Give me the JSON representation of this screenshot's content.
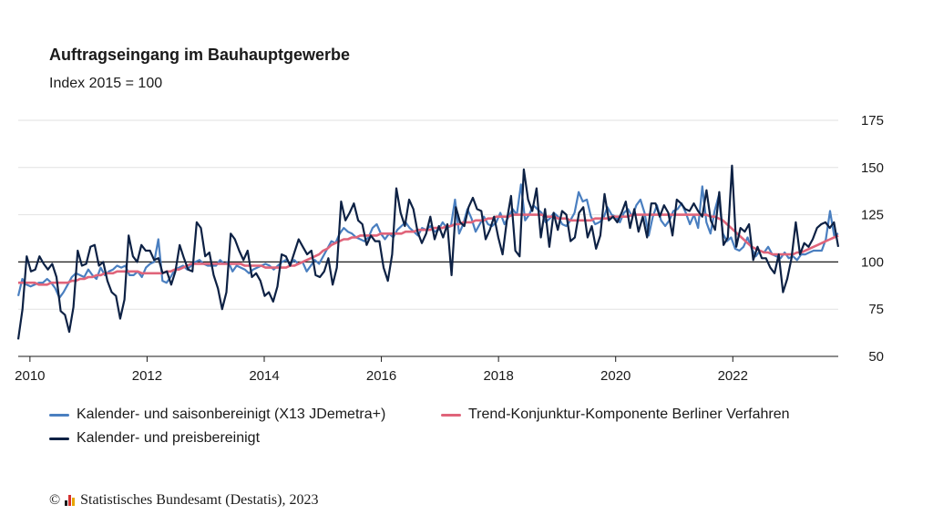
{
  "chart_data": {
    "type": "line",
    "title": "Auftragseingang im Bauhauptgewerbe",
    "subtitle": "Index 2015 = 100",
    "xlim": [
      2009.8,
      2023.8
    ],
    "ylim": [
      50,
      175
    ],
    "x_ticks": [
      "2010",
      "2012",
      "2014",
      "2016",
      "2018",
      "2020",
      "2022"
    ],
    "y_ticks": [
      "175",
      "150",
      "125",
      "100",
      "75",
      "50"
    ],
    "reference_line": 100,
    "series": [
      {
        "name": "Kalender- und saisonbereinigt (X13 JDemetra+)",
        "color": "#4a7fc0",
        "values": [
          82,
          91,
          88,
          87,
          88,
          89,
          89,
          91,
          89,
          86,
          81,
          84,
          88,
          92,
          94,
          93,
          92,
          96,
          93,
          91,
          97,
          93,
          95,
          96,
          98,
          97,
          98,
          93,
          93,
          95,
          92,
          97,
          99,
          100,
          112,
          90,
          89,
          92,
          96,
          97,
          98,
          96,
          98,
          100,
          101,
          99,
          98,
          98,
          98,
          101,
          99,
          100,
          95,
          98,
          97,
          96,
          94,
          96,
          97,
          98,
          99,
          98,
          96,
          98,
          100,
          101,
          99,
          101,
          99,
          100,
          95,
          98,
          101,
          99,
          103,
          107,
          111,
          110,
          115,
          118,
          116,
          115,
          113,
          112,
          111,
          113,
          118,
          120,
          115,
          112,
          115,
          113,
          117,
          119,
          121,
          118,
          116,
          114,
          118,
          117,
          119,
          116,
          117,
          121,
          118,
          119,
          133,
          115,
          120,
          128,
          123,
          116,
          120,
          124,
          120,
          119,
          121,
          126,
          120,
          124,
          128,
          125,
          141,
          122,
          125,
          130,
          128,
          126,
          121,
          123,
          126,
          124,
          120,
          119,
          122,
          126,
          137,
          132,
          133,
          124,
          120,
          121,
          123,
          129,
          125,
          124,
          121,
          126,
          128,
          124,
          130,
          133,
          126,
          114,
          124,
          130,
          122,
          119,
          122,
          127,
          128,
          131,
          126,
          120,
          125,
          118,
          140,
          121,
          115,
          127,
          135,
          115,
          111,
          113,
          107,
          106,
          108,
          113,
          107,
          103,
          106,
          105,
          108,
          104,
          103,
          102,
          105,
          102,
          103,
          101,
          104,
          104,
          105,
          106,
          106,
          106,
          112,
          127,
          114,
          115
        ]
      },
      {
        "name": "Trend-Konjunktur-Komponente Berliner Verfahren",
        "color": "#e0647a",
        "values": [
          89,
          89,
          89,
          89,
          89,
          88,
          88,
          88,
          89,
          89,
          89,
          89,
          89,
          90,
          90,
          91,
          91,
          92,
          92,
          93,
          93,
          94,
          94,
          94,
          95,
          95,
          95,
          95,
          95,
          95,
          94,
          94,
          94,
          94,
          94,
          94,
          95,
          95,
          96,
          96,
          97,
          98,
          99,
          99,
          99,
          99,
          99,
          99,
          99,
          99,
          99,
          99,
          99,
          99,
          99,
          98,
          98,
          98,
          98,
          98,
          97,
          97,
          97,
          97,
          97,
          97,
          98,
          98,
          99,
          100,
          101,
          102,
          103,
          104,
          106,
          107,
          109,
          110,
          111,
          112,
          112,
          113,
          113,
          114,
          114,
          114,
          114,
          114,
          115,
          115,
          115,
          115,
          115,
          115,
          116,
          116,
          116,
          117,
          117,
          117,
          117,
          118,
          118,
          118,
          119,
          119,
          120,
          120,
          121,
          121,
          121,
          122,
          122,
          122,
          123,
          123,
          124,
          124,
          124,
          124,
          125,
          125,
          125,
          125,
          125,
          125,
          125,
          125,
          124,
          124,
          124,
          123,
          123,
          123,
          122,
          122,
          122,
          122,
          122,
          122,
          123,
          123,
          123,
          123,
          124,
          124,
          124,
          124,
          124,
          125,
          125,
          125,
          125,
          125,
          125,
          125,
          125,
          125,
          125,
          125,
          125,
          125,
          125,
          125,
          125,
          125,
          125,
          125,
          124,
          124,
          123,
          122,
          120,
          118,
          116,
          114,
          112,
          110,
          108,
          107,
          106,
          105,
          105,
          104,
          104,
          104,
          104,
          104,
          104,
          105,
          105,
          106,
          107,
          108,
          109,
          110,
          111,
          112,
          113,
          114
        ]
      },
      {
        "name": "Kalender- und preisbereinigt",
        "color": "#0d2144",
        "values": [
          59,
          75,
          103,
          95,
          96,
          103,
          99,
          96,
          99,
          92,
          74,
          72,
          63,
          76,
          106,
          98,
          99,
          108,
          109,
          98,
          100,
          90,
          84,
          82,
          70,
          80,
          114,
          103,
          100,
          109,
          106,
          106,
          101,
          102,
          94,
          95,
          88,
          95,
          109,
          102,
          96,
          95,
          121,
          118,
          103,
          105,
          93,
          86,
          75,
          84,
          115,
          112,
          106,
          101,
          106,
          92,
          94,
          90,
          82,
          84,
          79,
          87,
          104,
          103,
          98,
          105,
          112,
          108,
          104,
          106,
          93,
          92,
          95,
          102,
          88,
          97,
          132,
          122,
          126,
          131,
          122,
          120,
          109,
          114,
          111,
          111,
          97,
          90,
          104,
          139,
          126,
          119,
          133,
          128,
          116,
          110,
          115,
          124,
          112,
          119,
          113,
          120,
          93,
          129,
          121,
          119,
          129,
          134,
          128,
          127,
          112,
          117,
          124,
          113,
          104,
          122,
          135,
          106,
          103,
          149,
          133,
          127,
          139,
          113,
          128,
          108,
          126,
          117,
          127,
          125,
          111,
          113,
          126,
          129,
          113,
          119,
          107,
          114,
          136,
          122,
          124,
          121,
          126,
          132,
          118,
          128,
          116,
          124,
          113,
          131,
          131,
          124,
          130,
          126,
          114,
          133,
          131,
          128,
          127,
          131,
          127,
          124,
          138,
          122,
          117,
          137,
          109,
          113,
          151,
          108,
          118,
          116,
          120,
          101,
          108,
          102,
          102,
          97,
          94,
          104,
          84,
          91,
          102,
          121,
          104,
          110,
          108,
          112,
          118,
          120,
          121,
          118,
          121,
          108
        ]
      }
    ]
  },
  "legend": {
    "items": [
      {
        "label": "Kalender- und saisonbereinigt (X13 JDemetra+)",
        "color": "#4a7fc0"
      },
      {
        "label": "Trend-Konjunktur-Komponente Berliner Verfahren",
        "color": "#e0647a"
      },
      {
        "label": "Kalender- und preisbereinigt",
        "color": "#0d2144"
      }
    ]
  },
  "footer": {
    "copyright_symbol": "©",
    "source": "Statistisches Bundesamt (Destatis), 2023",
    "logo_colors": [
      "#1a1a1a",
      "#d4302f",
      "#e8a500"
    ]
  }
}
